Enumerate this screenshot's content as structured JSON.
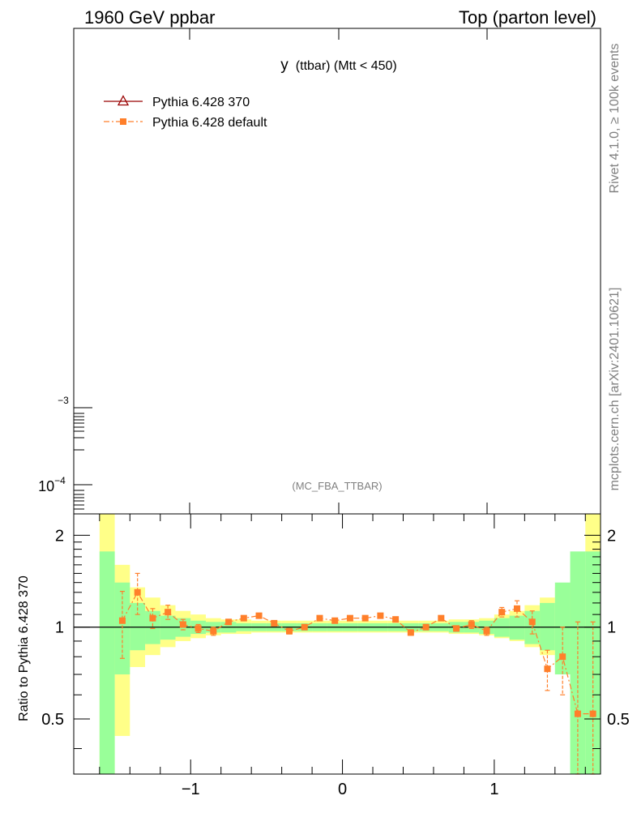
{
  "header": {
    "left": "1960 GeV ppbar",
    "right": "Top (parton level)"
  },
  "side_labels": {
    "rivet": "Rivet 4.1.0, ≥ 100k events",
    "mcplots": "mcplots.cern.ch [arXiv:2401.10621]"
  },
  "main_plot": {
    "title_main": "y",
    "title_sub": "(ttbar) (Mtt < 450)",
    "watermark": "(MC_FBA_TTBAR)",
    "y_tick_labels": [
      {
        "base": "",
        "exp": "−3"
      },
      {
        "base": "10",
        "exp": "−4"
      }
    ]
  },
  "legend": [
    {
      "label": "Pythia 6.428 370",
      "color": "#990000",
      "marker": "open-triangle",
      "style": "solid"
    },
    {
      "label": "Pythia 6.428 default",
      "color": "#ff7f2a",
      "marker": "filled-square",
      "style": "dashdot"
    }
  ],
  "chart_data": {
    "type": "scatter",
    "title": "y (ttbar) (Mtt < 450)",
    "xlabel": "",
    "ylabel": "Ratio to Pythia 6.428 370",
    "xlim": [
      -1.77,
      1.7
    ],
    "ylim": [
      0.33,
      2.35
    ],
    "y_scale": "log",
    "x_ticks": [
      -1,
      0,
      1
    ],
    "x_tick_labels": [
      "−1",
      "0",
      "1"
    ],
    "y_ticks": [
      0.5,
      1,
      2
    ],
    "y_tick_labels": [
      "0.5",
      "1",
      "2"
    ],
    "bins": [
      -1.6,
      -1.5,
      -1.4,
      -1.3,
      -1.2,
      -1.1,
      -1.0,
      -0.9,
      -0.8,
      -0.7,
      -0.6,
      -0.5,
      -0.4,
      -0.3,
      -0.2,
      -0.1,
      0.0,
      0.1,
      0.2,
      0.3,
      0.4,
      0.5,
      0.6,
      0.7,
      0.8,
      0.9,
      1.0,
      1.1,
      1.2,
      1.3,
      1.4,
      1.5,
      1.6,
      1.7
    ],
    "band_green": [
      [
        0.33,
        1.77
      ],
      [
        0.7,
        1.4
      ],
      [
        0.84,
        1.2
      ],
      [
        0.88,
        1.13
      ],
      [
        0.91,
        1.09
      ],
      [
        0.93,
        1.07
      ],
      [
        0.95,
        1.05
      ],
      [
        0.96,
        1.04
      ],
      [
        0.96,
        1.04
      ],
      [
        0.97,
        1.03
      ],
      [
        0.97,
        1.03
      ],
      [
        0.97,
        1.03
      ],
      [
        0.97,
        1.03
      ],
      [
        0.97,
        1.03
      ],
      [
        0.97,
        1.03
      ],
      [
        0.97,
        1.03
      ],
      [
        0.97,
        1.03
      ],
      [
        0.97,
        1.03
      ],
      [
        0.97,
        1.03
      ],
      [
        0.97,
        1.03
      ],
      [
        0.97,
        1.03
      ],
      [
        0.97,
        1.03
      ],
      [
        0.97,
        1.03
      ],
      [
        0.96,
        1.04
      ],
      [
        0.96,
        1.04
      ],
      [
        0.95,
        1.05
      ],
      [
        0.93,
        1.07
      ],
      [
        0.91,
        1.09
      ],
      [
        0.88,
        1.13
      ],
      [
        0.84,
        1.2
      ],
      [
        0.7,
        1.4
      ],
      [
        0.33,
        1.77
      ],
      [
        0.33,
        1.77
      ]
    ],
    "band_yellow": [
      [
        0.33,
        2.35
      ],
      [
        0.44,
        1.6
      ],
      [
        0.74,
        1.35
      ],
      [
        0.81,
        1.25
      ],
      [
        0.86,
        1.18
      ],
      [
        0.9,
        1.13
      ],
      [
        0.92,
        1.1
      ],
      [
        0.94,
        1.07
      ],
      [
        0.95,
        1.06
      ],
      [
        0.95,
        1.06
      ],
      [
        0.96,
        1.05
      ],
      [
        0.96,
        1.05
      ],
      [
        0.96,
        1.05
      ],
      [
        0.96,
        1.05
      ],
      [
        0.96,
        1.05
      ],
      [
        0.96,
        1.05
      ],
      [
        0.96,
        1.05
      ],
      [
        0.96,
        1.05
      ],
      [
        0.96,
        1.05
      ],
      [
        0.96,
        1.05
      ],
      [
        0.96,
        1.05
      ],
      [
        0.96,
        1.05
      ],
      [
        0.96,
        1.05
      ],
      [
        0.95,
        1.06
      ],
      [
        0.95,
        1.06
      ],
      [
        0.94,
        1.07
      ],
      [
        0.92,
        1.1
      ],
      [
        0.9,
        1.13
      ],
      [
        0.86,
        1.18
      ],
      [
        0.81,
        1.25
      ],
      [
        0.74,
        1.35
      ],
      [
        0.44,
        1.6
      ],
      [
        0.33,
        2.35
      ]
    ],
    "series": [
      {
        "name": "Pythia 6.428 default",
        "x": [
          -1.45,
          -1.35,
          -1.25,
          -1.15,
          -1.05,
          -0.95,
          -0.85,
          -0.75,
          -0.65,
          -0.55,
          -0.45,
          -0.35,
          -0.25,
          -0.15,
          -0.05,
          0.05,
          0.15,
          0.25,
          0.35,
          0.45,
          0.55,
          0.65,
          0.75,
          0.85,
          0.95,
          1.05,
          1.15,
          1.25,
          1.35,
          1.45,
          1.55,
          1.65
        ],
        "y": [
          1.05,
          1.3,
          1.07,
          1.12,
          1.02,
          0.99,
          0.97,
          1.04,
          1.07,
          1.09,
          1.03,
          0.97,
          1.0,
          1.07,
          1.05,
          1.07,
          1.07,
          1.09,
          1.06,
          0.96,
          1.0,
          1.07,
          0.99,
          1.02,
          0.97,
          1.12,
          1.15,
          1.04,
          0.73,
          0.8,
          0.52,
          0.52
        ],
        "err": [
          0.26,
          0.2,
          0.08,
          0.06,
          0.04,
          0.03,
          0.03,
          0.02,
          0.02,
          0.02,
          0.02,
          0.02,
          0.02,
          0.02,
          0.02,
          0.02,
          0.02,
          0.02,
          0.02,
          0.02,
          0.02,
          0.02,
          0.02,
          0.03,
          0.03,
          0.04,
          0.07,
          0.09,
          0.11,
          0.2,
          0.52,
          0.52
        ]
      }
    ]
  }
}
